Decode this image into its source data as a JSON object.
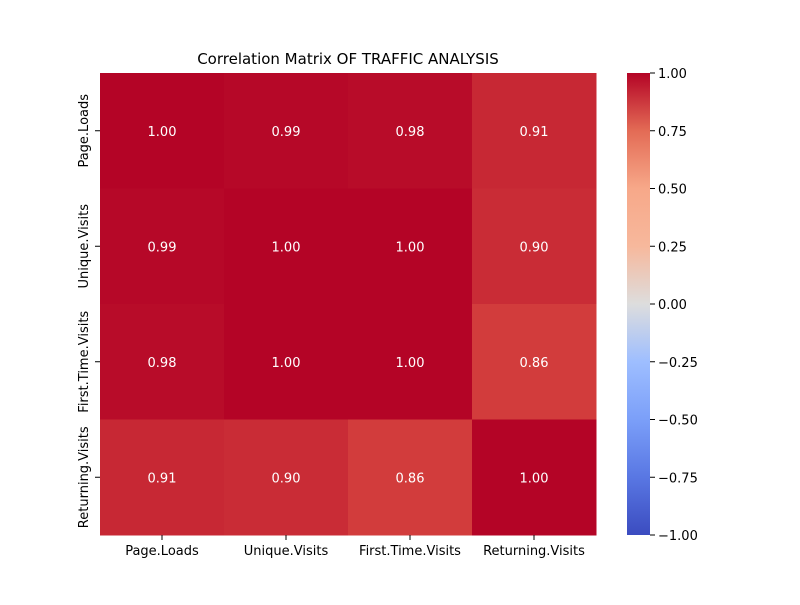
{
  "chart_data": {
    "type": "heatmap",
    "title": "Correlation Matrix OF TRAFFIC ANALYSIS",
    "x_categories": [
      "Page.Loads",
      "Unique.Visits",
      "First.Time.Visits",
      "Returning.Visits"
    ],
    "y_categories": [
      "Page.Loads",
      "Unique.Visits",
      "First.Time.Visits",
      "Returning.Visits"
    ],
    "values": [
      [
        1.0,
        0.99,
        0.98,
        0.91
      ],
      [
        0.99,
        1.0,
        1.0,
        0.9
      ],
      [
        0.98,
        1.0,
        1.0,
        0.86
      ],
      [
        0.91,
        0.9,
        0.86,
        1.0
      ]
    ],
    "annotations": [
      [
        "1.00",
        "0.99",
        "0.98",
        "0.91"
      ],
      [
        "0.99",
        "1.00",
        "1.00",
        "0.90"
      ],
      [
        "0.98",
        "1.00",
        "1.00",
        "0.86"
      ],
      [
        "0.91",
        "0.90",
        "0.86",
        "1.00"
      ]
    ],
    "colorbar": {
      "colormap": "coolwarm",
      "vmin": -1.0,
      "vmax": 1.0,
      "ticks": [
        1.0,
        0.75,
        0.5,
        0.25,
        0.0,
        -0.25,
        -0.5,
        -0.75,
        -1.0
      ],
      "tick_labels": [
        "1.00",
        "0.75",
        "0.50",
        "0.25",
        "0.00",
        "−0.25",
        "−0.50",
        "−0.75",
        "−1.00"
      ],
      "low_color": "#3b4cc0",
      "mid_color": "#dddddd",
      "high_color": "#b40426"
    },
    "xlabel": "",
    "ylabel": "",
    "grid": false,
    "legend": "colorbar-right"
  }
}
